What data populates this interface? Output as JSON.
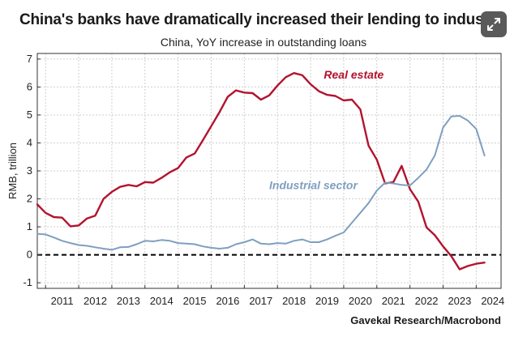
{
  "header": {
    "title": "China's banks have dramatically increased their lending to industry",
    "expand_icon": "expand-icon"
  },
  "source": "Gavekal Research/Macrobond",
  "colors": {
    "real_estate": "#b3132e",
    "industrial": "#7f9fc0",
    "grid": "#cfcfcf",
    "zero_line": "#000000"
  },
  "chart_data": {
    "type": "line",
    "title": "China, YoY increase in outstanding loans",
    "xlabel": "",
    "ylabel": "RMB, trillion",
    "xlim": [
      2010.75,
      2024.75
    ],
    "ylim": [
      -1.2,
      7.2
    ],
    "yticks": [
      "-1",
      "0",
      "1",
      "2",
      "3",
      "4",
      "5",
      "6",
      "7"
    ],
    "xticks": [
      "2011",
      "2012",
      "2013",
      "2014",
      "2015",
      "2016",
      "2017",
      "2018",
      "2019",
      "2020",
      "2021",
      "2022",
      "2023",
      "2024"
    ],
    "grid": true,
    "zero_line": "dashed",
    "series": [
      {
        "name": "Real estate",
        "x": [
          2010.75,
          2011.0,
          2011.25,
          2011.5,
          2011.75,
          2012.0,
          2012.25,
          2012.5,
          2012.75,
          2013.0,
          2013.25,
          2013.5,
          2013.75,
          2014.0,
          2014.25,
          2014.5,
          2014.75,
          2015.0,
          2015.25,
          2015.5,
          2015.75,
          2016.0,
          2016.25,
          2016.5,
          2016.75,
          2017.0,
          2017.25,
          2017.5,
          2017.75,
          2018.0,
          2018.25,
          2018.5,
          2018.75,
          2019.0,
          2019.25,
          2019.5,
          2019.75,
          2020.0,
          2020.25,
          2020.5,
          2020.75,
          2021.0,
          2021.25,
          2021.5,
          2021.75,
          2022.0,
          2022.25,
          2022.5,
          2022.75,
          2023.0,
          2023.25,
          2023.5,
          2023.75,
          2024.0,
          2024.25
        ],
        "values": [
          1.8,
          1.5,
          1.35,
          1.33,
          1.02,
          1.05,
          1.3,
          1.4,
          2.0,
          2.25,
          2.43,
          2.5,
          2.45,
          2.6,
          2.58,
          2.75,
          2.95,
          3.1,
          3.48,
          3.62,
          4.1,
          4.6,
          5.1,
          5.65,
          5.88,
          5.8,
          5.78,
          5.55,
          5.7,
          6.05,
          6.35,
          6.5,
          6.42,
          6.1,
          5.85,
          5.72,
          5.68,
          5.52,
          5.55,
          5.2,
          3.9,
          3.4,
          2.55,
          2.6,
          3.18,
          2.35,
          1.9,
          0.98,
          0.7,
          0.3,
          -0.05,
          -0.52,
          -0.4,
          -0.32,
          -0.28
        ],
        "label": "Real estate"
      },
      {
        "name": "Industrial sector",
        "x": [
          2010.75,
          2011.0,
          2011.25,
          2011.5,
          2011.75,
          2012.0,
          2012.25,
          2012.5,
          2012.75,
          2013.0,
          2013.25,
          2013.5,
          2013.75,
          2014.0,
          2014.25,
          2014.5,
          2014.75,
          2015.0,
          2015.25,
          2015.5,
          2015.75,
          2016.0,
          2016.25,
          2016.5,
          2016.75,
          2017.0,
          2017.25,
          2017.5,
          2017.75,
          2018.0,
          2018.25,
          2018.5,
          2018.75,
          2019.0,
          2019.25,
          2019.5,
          2019.75,
          2020.0,
          2020.25,
          2020.5,
          2020.75,
          2021.0,
          2021.25,
          2021.5,
          2021.75,
          2022.0,
          2022.25,
          2022.5,
          2022.75,
          2023.0,
          2023.25,
          2023.5,
          2023.75,
          2024.0,
          2024.25
        ],
        "values": [
          0.75,
          0.73,
          0.62,
          0.5,
          0.42,
          0.35,
          0.32,
          0.27,
          0.22,
          0.18,
          0.27,
          0.28,
          0.38,
          0.5,
          0.48,
          0.53,
          0.5,
          0.42,
          0.4,
          0.38,
          0.3,
          0.25,
          0.22,
          0.25,
          0.38,
          0.45,
          0.55,
          0.4,
          0.38,
          0.42,
          0.4,
          0.5,
          0.55,
          0.45,
          0.45,
          0.55,
          0.68,
          0.8,
          1.15,
          1.5,
          1.85,
          2.3,
          2.58,
          2.55,
          2.5,
          2.48,
          2.75,
          3.05,
          3.55,
          4.55,
          4.95,
          4.97,
          4.8,
          4.5,
          3.55
        ],
        "label": "Industrial sector"
      }
    ]
  }
}
